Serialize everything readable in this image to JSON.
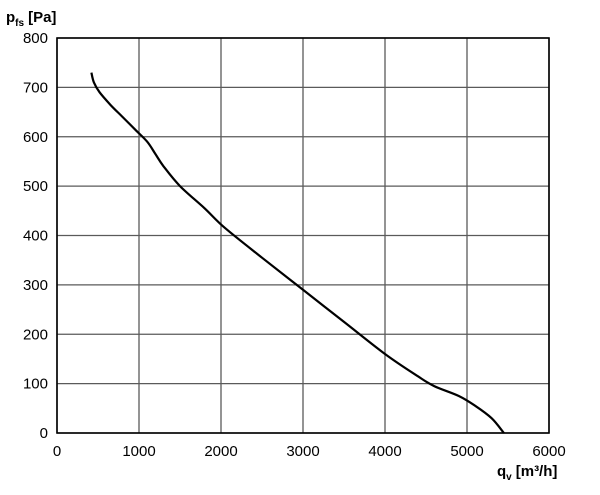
{
  "chart_data": {
    "type": "line",
    "ylabel": {
      "symbol": "p",
      "subscript": "fs",
      "unit": "[Pa]"
    },
    "xlabel": {
      "symbol": "q",
      "subscript": "v",
      "unit": "[m³/h]"
    },
    "xlim": [
      0,
      6000
    ],
    "ylim": [
      0,
      800
    ],
    "x_ticks": [
      0,
      1000,
      2000,
      3000,
      4000,
      5000,
      6000
    ],
    "y_ticks": [
      0,
      100,
      200,
      300,
      400,
      500,
      600,
      700,
      800
    ],
    "x_tick_labels": [
      "0",
      "1000",
      "2000",
      "3000",
      "4000",
      "5000",
      "6000"
    ],
    "y_tick_labels": [
      "0",
      "100",
      "200",
      "300",
      "400",
      "500",
      "600",
      "700",
      "800"
    ],
    "grid": true,
    "series": [
      {
        "x": [
          420,
          450,
          520,
          650,
          800,
          950,
          1100,
          1200,
          1300,
          1500,
          1800,
          2050,
          2500,
          3000,
          3500,
          4000,
          4400,
          4600,
          4900,
          5100,
          5300,
          5450
        ],
        "y": [
          730,
          710,
          690,
          665,
          640,
          615,
          590,
          565,
          540,
          500,
          455,
          415,
          355,
          290,
          225,
          160,
          115,
          95,
          75,
          55,
          30,
          0
        ]
      }
    ],
    "colors": {
      "line": "#000000",
      "grid": "#5a5a5a",
      "axis": "#000000"
    }
  }
}
